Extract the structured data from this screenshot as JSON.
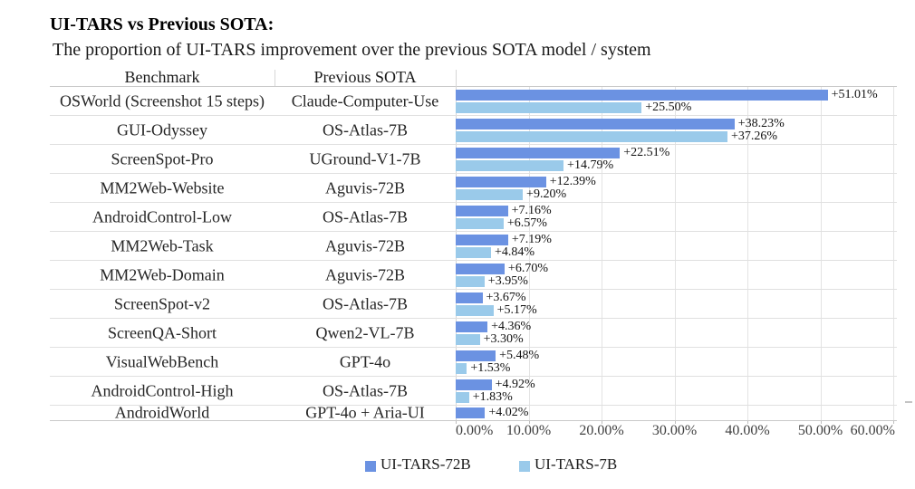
{
  "title": "UI-TARS vs Previous SOTA:",
  "subtitle": "The proportion of UI-TARS improvement over the previous SOTA model / system",
  "table": {
    "benchmark_header": "Benchmark",
    "sota_header": "Previous SOTA"
  },
  "legend": {
    "items": [
      {
        "label": "UI-TARS-72B",
        "color": "#6b92e2"
      },
      {
        "label": "UI-TARS-7B",
        "color": "#9acaea"
      }
    ],
    "position": "bottom"
  },
  "colors": {
    "series_72b": "#6b92e2",
    "series_7b": "#9acaea",
    "gridline": "#e3e3e3",
    "axis_line": "#c9c9c9"
  },
  "chart_data": {
    "type": "bar",
    "orientation": "horizontal",
    "title": "UI-TARS vs Previous SOTA:",
    "subtitle": "The proportion of UI-TARS improvement over the previous SOTA model / system",
    "categories": [
      "OSWorld (Screenshot 15 steps)",
      "GUI-Odyssey",
      "ScreenSpot-Pro",
      "MM2Web-Website",
      "AndroidControl-Low",
      "MM2Web-Task",
      "MM2Web-Domain",
      "ScreenSpot-v2",
      "ScreenQA-Short",
      "VisualWebBench",
      "AndroidControl-High",
      "AndroidWorld"
    ],
    "previous_sota": [
      "Claude-Computer-Use",
      "OS-Atlas-7B",
      "UGround-V1-7B",
      "Aguvis-72B",
      "OS-Atlas-7B",
      "Aguvis-72B",
      "Aguvis-72B",
      "OS-Atlas-7B",
      "Qwen2-VL-7B",
      "GPT-4o",
      "OS-Atlas-7B",
      "GPT-4o + Aria-UI"
    ],
    "series": [
      {
        "name": "UI-TARS-72B",
        "color": "#6b92e2",
        "values": [
          51.01,
          38.23,
          22.51,
          12.39,
          7.16,
          7.19,
          6.7,
          3.67,
          4.36,
          5.48,
          4.92,
          4.02
        ]
      },
      {
        "name": "UI-TARS-7B",
        "color": "#9acaea",
        "values": [
          25.5,
          37.26,
          14.79,
          9.2,
          6.57,
          4.84,
          3.95,
          5.17,
          3.3,
          1.53,
          1.83,
          null
        ]
      }
    ],
    "value_label_format": "+{value}%",
    "xlim": [
      0,
      60
    ],
    "x_tick_labels": [
      "0.00%",
      "10.00%",
      "20.00%",
      "30.00%",
      "40.00%",
      "50.00%",
      "60.00%"
    ],
    "grid": true,
    "legend_position": "bottom"
  }
}
